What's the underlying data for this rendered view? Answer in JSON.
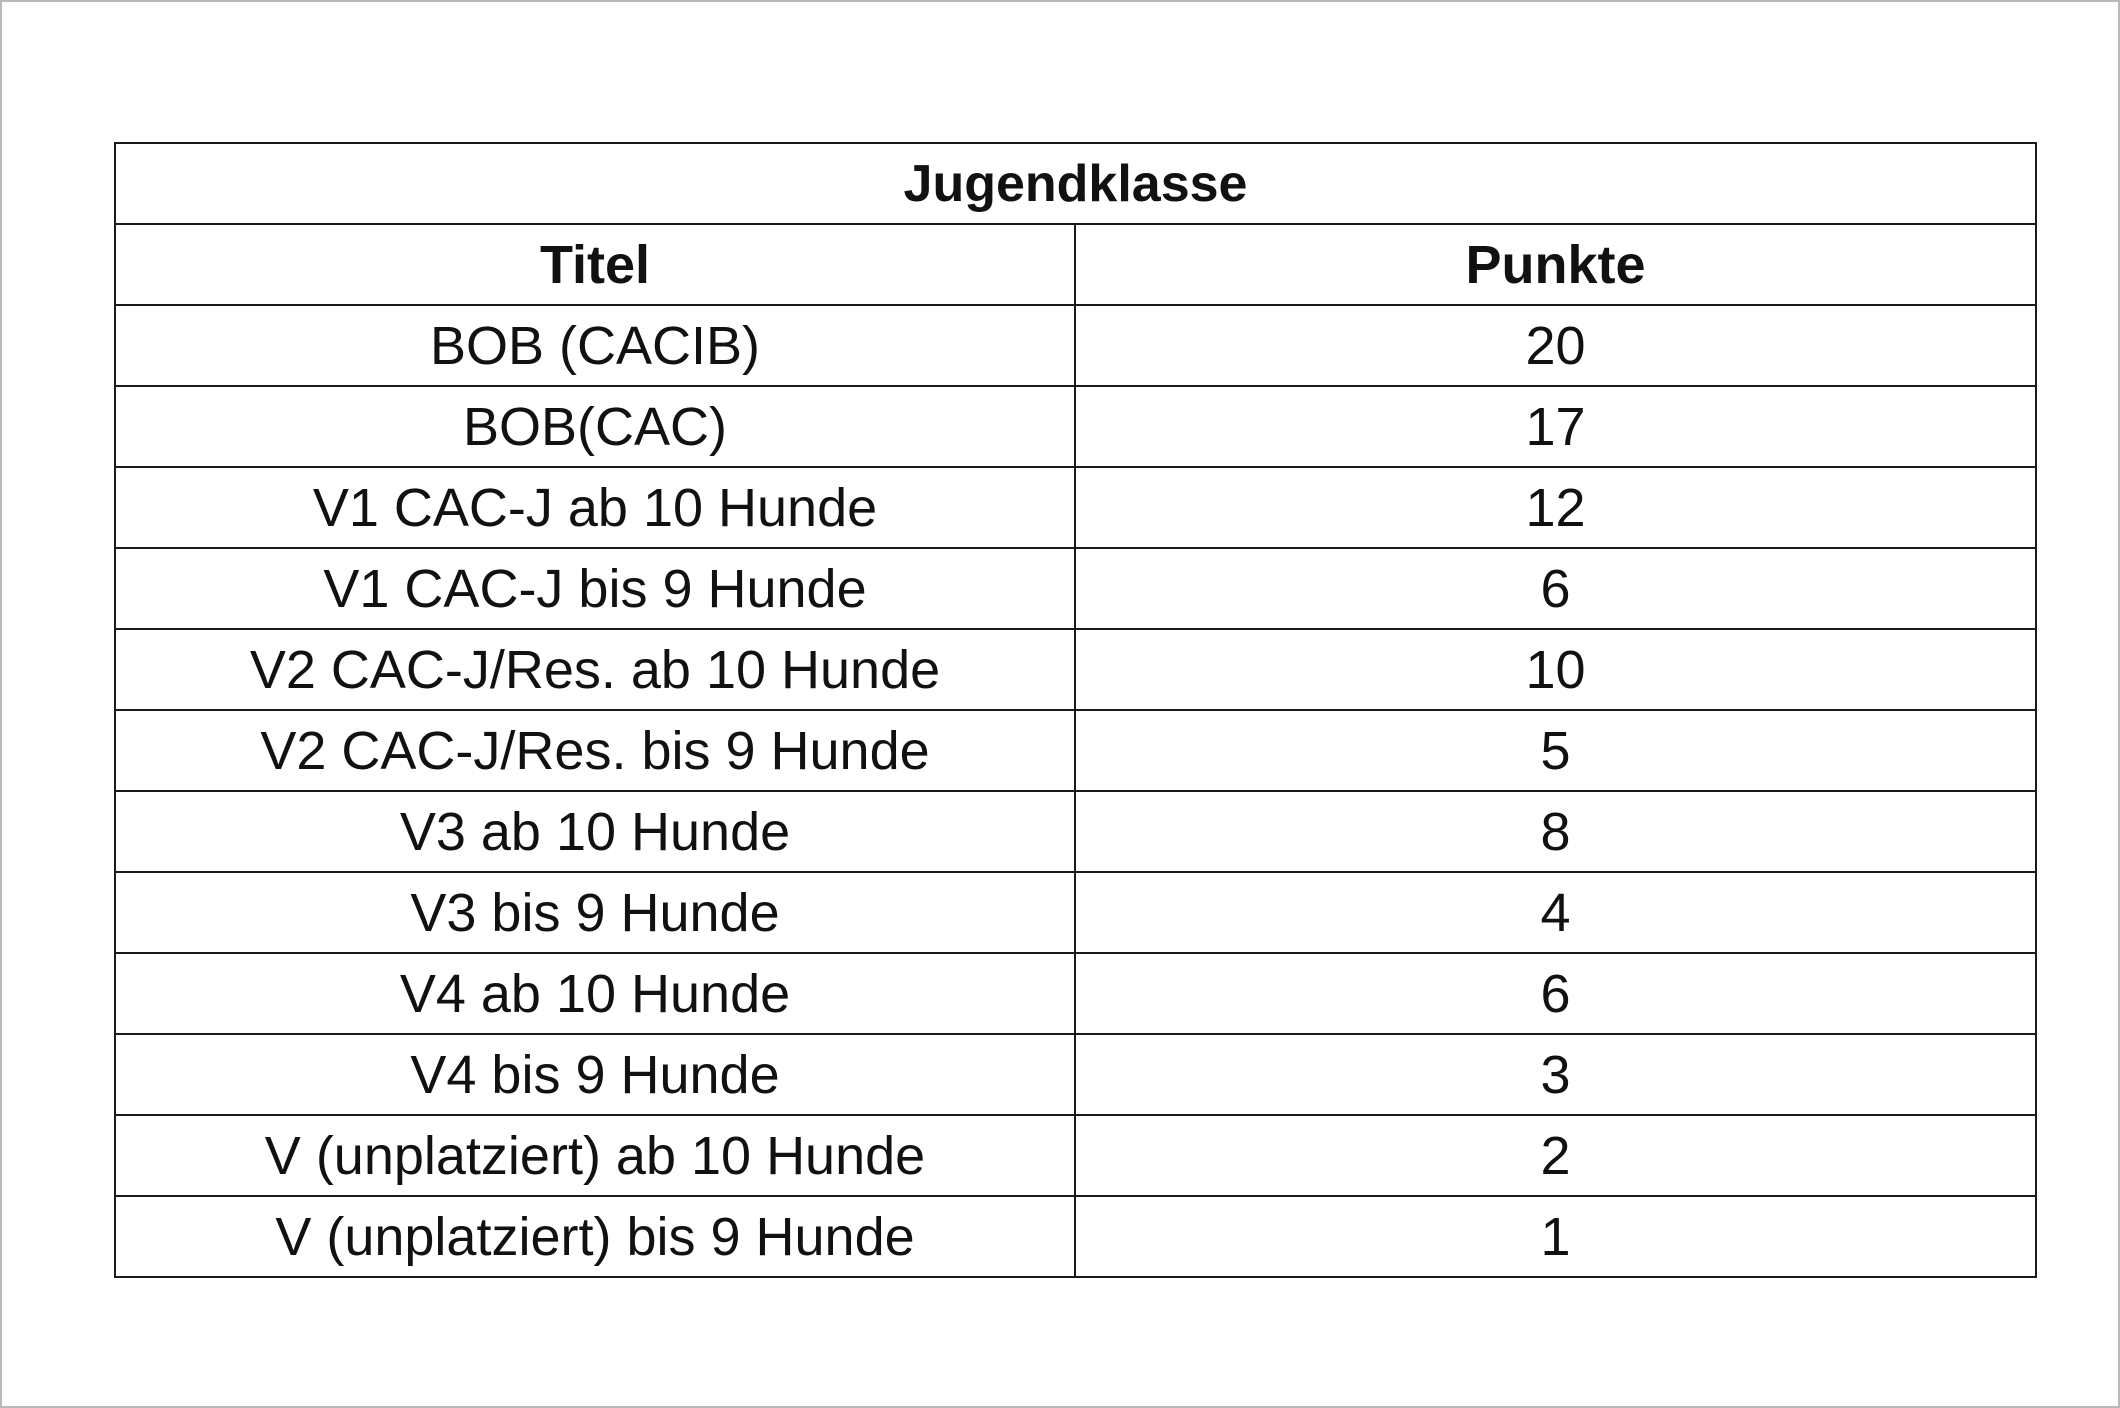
{
  "table": {
    "caption": "Jugendklasse",
    "headers": {
      "titel": "Titel",
      "punkte": "Punkte"
    },
    "rows": [
      {
        "titel": "BOB (CACIB)",
        "punkte": "20"
      },
      {
        "titel": "BOB(CAC)",
        "punkte": "17"
      },
      {
        "titel": "V1 CAC-J ab 10 Hunde",
        "punkte": "12"
      },
      {
        "titel": "V1 CAC-J bis 9 Hunde",
        "punkte": "6"
      },
      {
        "titel": "V2 CAC-J/Res. ab 10 Hunde",
        "punkte": "10"
      },
      {
        "titel": "V2 CAC-J/Res. bis 9 Hunde",
        "punkte": "5"
      },
      {
        "titel": "V3 ab 10 Hunde",
        "punkte": "8"
      },
      {
        "titel": "V3 bis 9 Hunde",
        "punkte": "4"
      },
      {
        "titel": "V4 ab 10 Hunde",
        "punkte": "6"
      },
      {
        "titel": "V4 bis 9 Hunde",
        "punkte": "3"
      },
      {
        "titel": "V (unplatziert) ab 10 Hunde",
        "punkte": "2"
      },
      {
        "titel": "V (unplatziert) bis 9 Hunde",
        "punkte": "1"
      }
    ]
  }
}
